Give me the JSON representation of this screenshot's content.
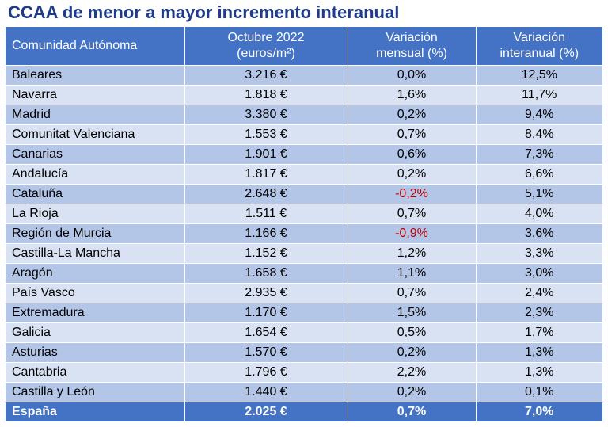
{
  "title": "CCAA de menor a mayor incremento interanual",
  "colors": {
    "header_bg": "#4472c4",
    "row_dark": "#b4c6e7",
    "row_light": "#d9e2f3",
    "negative": "#c00000",
    "title": "#1f3c8c"
  },
  "headers": {
    "community": "Comunidad Autónoma",
    "price_line1": "Octubre 2022",
    "price_line2": "(euros/m²)",
    "monthly_line1": "Variación",
    "monthly_line2": "mensual (%)",
    "yearly_line1": "Variación",
    "yearly_line2": "interanual (%)"
  },
  "rows": [
    {
      "name": "Baleares",
      "price": "3.216 €",
      "monthly": "0,0%",
      "yearly": "12,5%",
      "negative": false
    },
    {
      "name": "Navarra",
      "price": "1.818 €",
      "monthly": "1,6%",
      "yearly": "11,7%",
      "negative": false
    },
    {
      "name": "Madrid",
      "price": "3.380 €",
      "monthly": "0,2%",
      "yearly": "9,4%",
      "negative": false
    },
    {
      "name": "Comunitat Valenciana",
      "price": "1.553 €",
      "monthly": "0,7%",
      "yearly": "8,4%",
      "negative": false
    },
    {
      "name": "Canarias",
      "price": "1.901 €",
      "monthly": "0,6%",
      "yearly": "7,3%",
      "negative": false
    },
    {
      "name": "Andalucía",
      "price": "1.817 €",
      "monthly": "0,2%",
      "yearly": "6,6%",
      "negative": false
    },
    {
      "name": "Cataluña",
      "price": "2.648 €",
      "monthly": "-0,2%",
      "yearly": "5,1%",
      "negative": true
    },
    {
      "name": "La Rioja",
      "price": "1.511 €",
      "monthly": "0,7%",
      "yearly": "4,0%",
      "negative": false
    },
    {
      "name": "Región de Murcia",
      "price": "1.166 €",
      "monthly": "-0,9%",
      "yearly": "3,6%",
      "negative": true
    },
    {
      "name": "Castilla-La Mancha",
      "price": "1.152 €",
      "monthly": "1,2%",
      "yearly": "3,3%",
      "negative": false
    },
    {
      "name": "Aragón",
      "price": "1.658 €",
      "monthly": "1,1%",
      "yearly": "3,0%",
      "negative": false
    },
    {
      "name": "País Vasco",
      "price": "2.935 €",
      "monthly": "0,7%",
      "yearly": "2,4%",
      "negative": false
    },
    {
      "name": "Extremadura",
      "price": "1.170 €",
      "monthly": "1,5%",
      "yearly": "2,3%",
      "negative": false
    },
    {
      "name": "Galicia",
      "price": "1.654 €",
      "monthly": "0,5%",
      "yearly": "1,7%",
      "negative": false
    },
    {
      "name": "Asturias",
      "price": "1.570 €",
      "monthly": "0,2%",
      "yearly": "1,3%",
      "negative": false
    },
    {
      "name": "Cantabria",
      "price": "1.796 €",
      "monthly": "2,2%",
      "yearly": "1,3%",
      "negative": false
    },
    {
      "name": "Castilla y León",
      "price": "1.440 €",
      "monthly": "0,2%",
      "yearly": "0,1%",
      "negative": false
    }
  ],
  "total": {
    "name": "España",
    "price": "2.025 €",
    "monthly": "0,7%",
    "yearly": "7,0%"
  }
}
